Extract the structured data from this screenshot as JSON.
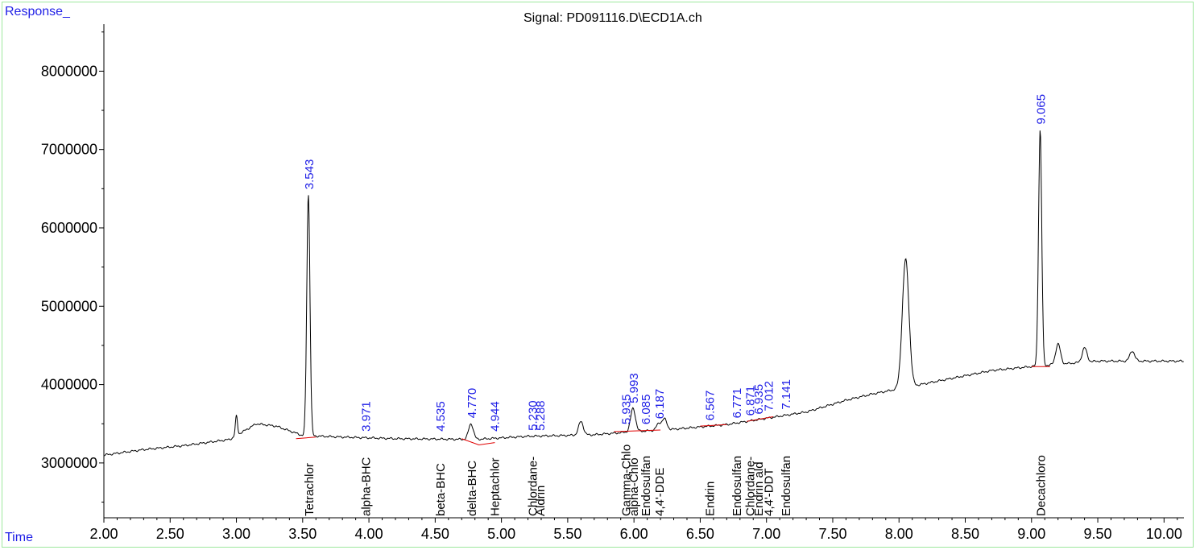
{
  "title": "Signal: PD091116.D\\ECD1A.ch",
  "ylabel": "Response_",
  "xlabel": "Time",
  "colors": {
    "trace": "#000000",
    "baseline": "#e00000",
    "peak_label": "#1f1fe6",
    "axis_label": "#1f1fe6",
    "frame": "#9ee89e"
  },
  "chart_data": {
    "type": "line",
    "title": "Signal: PD091116.D\\ECD1A.ch",
    "xlabel": "Time",
    "ylabel": "Response_",
    "xlim": [
      2.0,
      10.15
    ],
    "ylim": [
      2300000,
      8600000
    ],
    "x_ticks": [
      "2.00",
      "2.50",
      "3.00",
      "3.50",
      "4.00",
      "4.50",
      "5.00",
      "5.50",
      "6.00",
      "6.50",
      "7.00",
      "7.50",
      "8.00",
      "8.50",
      "9.00",
      "9.50",
      "10.00"
    ],
    "y_ticks": [
      "3000000",
      "4000000",
      "5000000",
      "6000000",
      "7000000",
      "8000000"
    ],
    "baseline": [
      [
        2.0,
        3100000
      ],
      [
        2.3,
        3170000
      ],
      [
        2.6,
        3220000
      ],
      [
        2.95,
        3300000
      ],
      [
        3.15,
        3500000
      ],
      [
        3.3,
        3470000
      ],
      [
        3.5,
        3350000
      ],
      [
        3.8,
        3330000
      ],
      [
        4.2,
        3310000
      ],
      [
        4.8,
        3300000
      ],
      [
        5.2,
        3340000
      ],
      [
        5.7,
        3360000
      ],
      [
        6.0,
        3400000
      ],
      [
        6.3,
        3430000
      ],
      [
        6.7,
        3490000
      ],
      [
        7.0,
        3570000
      ],
      [
        7.3,
        3650000
      ],
      [
        7.6,
        3800000
      ],
      [
        7.8,
        3880000
      ],
      [
        8.1,
        3980000
      ],
      [
        8.4,
        4080000
      ],
      [
        8.7,
        4180000
      ],
      [
        9.0,
        4230000
      ],
      [
        9.5,
        4300000
      ],
      [
        10.15,
        4300000
      ]
    ],
    "peaks": [
      {
        "x": 3.0,
        "y": 3600000
      },
      {
        "x": 3.543,
        "y": 6430000
      },
      {
        "x": 4.77,
        "y": 3500000
      },
      {
        "x": 5.6,
        "y": 3530000
      },
      {
        "x": 5.993,
        "y": 3700000
      },
      {
        "x": 6.187,
        "y": 3500000
      },
      {
        "x": 6.23,
        "y": 3560000
      },
      {
        "x": 8.05,
        "y": 5600000
      },
      {
        "x": 9.065,
        "y": 7250000
      },
      {
        "x": 9.2,
        "y": 4520000
      },
      {
        "x": 9.4,
        "y": 4470000
      },
      {
        "x": 9.76,
        "y": 4430000
      }
    ],
    "peak_labels": [
      "3.543",
      "3.971",
      "4.535",
      "4.770",
      "4.944",
      "5.230",
      "5.288",
      "5.935",
      "5.993",
      "6.085",
      "6.187",
      "6.567",
      "6.771",
      "6.871",
      "6.935",
      "7.012",
      "7.141",
      "9.065"
    ],
    "peak_label_positions": [
      {
        "x": 3.543,
        "y": 6450000
      },
      {
        "x": 3.971,
        "y": 3360000
      },
      {
        "x": 4.535,
        "y": 3360000
      },
      {
        "x": 4.77,
        "y": 3530000
      },
      {
        "x": 4.944,
        "y": 3360000
      },
      {
        "x": 5.23,
        "y": 3370000
      },
      {
        "x": 5.288,
        "y": 3370000
      },
      {
        "x": 5.935,
        "y": 3450000
      },
      {
        "x": 5.993,
        "y": 3720000
      },
      {
        "x": 6.085,
        "y": 3450000
      },
      {
        "x": 6.187,
        "y": 3520000
      },
      {
        "x": 6.567,
        "y": 3500000
      },
      {
        "x": 6.771,
        "y": 3530000
      },
      {
        "x": 6.871,
        "y": 3560000
      },
      {
        "x": 6.935,
        "y": 3580000
      },
      {
        "x": 7.012,
        "y": 3620000
      },
      {
        "x": 7.141,
        "y": 3640000
      },
      {
        "x": 9.065,
        "y": 7280000
      }
    ],
    "compound_labels": [
      "Tetrachlor",
      "alpha-BHC",
      "beta-BHC",
      "delta-BHC",
      "Heptachlor",
      "Chlordane-",
      "Aldrin",
      "Gamma-Chlo",
      "alpha-Chlo",
      "Endosulfan",
      "4,4'-DDE",
      "Endrin",
      "Endosulfan",
      "Chlordane-",
      "Endrin ald",
      "4,4'-DDT",
      "Endosulfan",
      "Decachloro"
    ],
    "compound_label_x": [
      3.543,
      3.971,
      4.535,
      4.77,
      4.944,
      5.23,
      5.288,
      5.935,
      5.993,
      6.085,
      6.187,
      6.567,
      6.771,
      6.871,
      6.935,
      7.012,
      7.141,
      9.065
    ],
    "baseline_segments": [
      [
        [
          3.45,
          3310000
        ],
        [
          3.6,
          3330000
        ]
      ],
      [
        [
          4.7,
          3310000
        ],
        [
          4.83,
          3230000
        ],
        [
          4.95,
          3260000
        ]
      ],
      [
        [
          5.85,
          3400000
        ],
        [
          6.2,
          3420000
        ]
      ],
      [
        [
          6.5,
          3470000
        ],
        [
          6.7,
          3490000
        ]
      ],
      [
        [
          6.85,
          3530000
        ],
        [
          7.05,
          3590000
        ]
      ],
      [
        [
          9.0,
          4230000
        ],
        [
          9.14,
          4230000
        ]
      ]
    ]
  }
}
